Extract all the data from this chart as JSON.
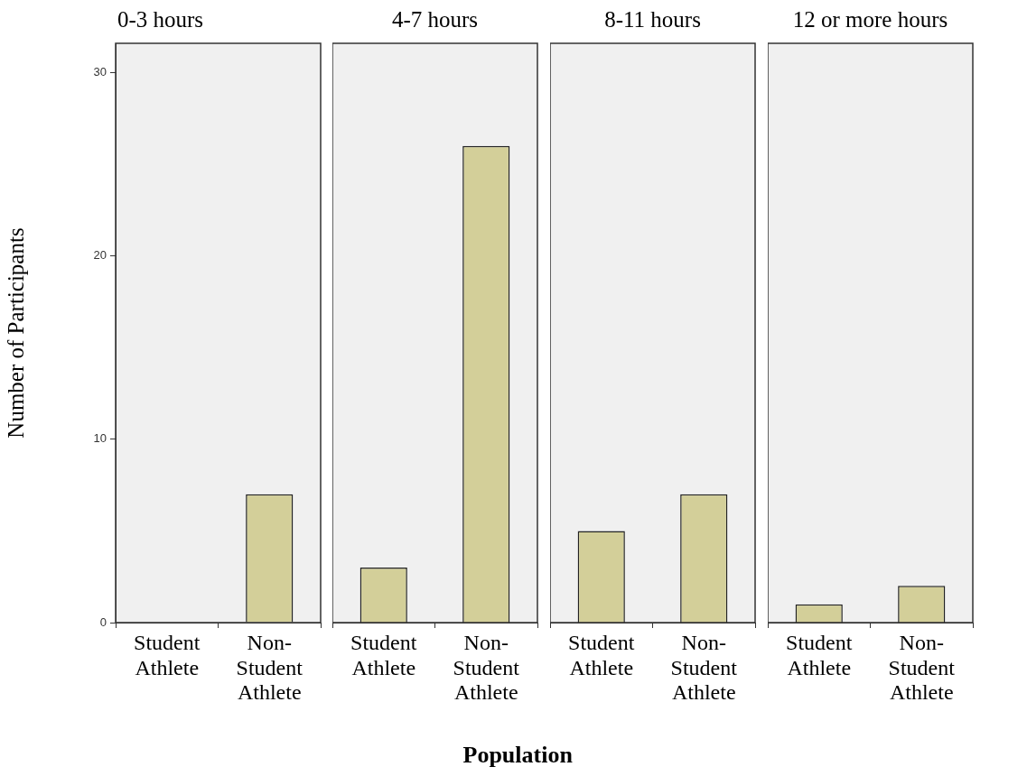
{
  "chart_data": [
    {
      "type": "bar",
      "title": "0-3 hours",
      "categories": [
        "Student Athlete",
        "Non-Student Athlete"
      ],
      "values": [
        0,
        7
      ],
      "color": "#d3cf99",
      "ylim": [
        0,
        31.6
      ],
      "yticks": [
        0,
        10,
        20,
        30
      ],
      "ylabel": "Number of Participants",
      "legend": false
    },
    {
      "type": "bar",
      "title": "4-7 hours",
      "categories": [
        "Student Athlete",
        "Non-Student Athlete"
      ],
      "values": [
        3,
        26
      ],
      "color": "#d3cf99",
      "ylim": [
        0,
        31.6
      ],
      "yticks": [
        0,
        10,
        20,
        30
      ],
      "tick_labels": "x",
      "xlabel": "Population",
      "legend": false
    },
    {
      "type": "bar",
      "title": "8-11 hours",
      "categories": [
        "Student Athlete",
        "Non-Student Athlete"
      ],
      "values": [
        5,
        7
      ],
      "color": "#d3cf99",
      "ylim": [
        0,
        31.6
      ],
      "yticks": [
        0,
        10,
        20,
        30
      ],
      "tick_labels": "x",
      "legend": false
    },
    {
      "type": "bar",
      "title": "12 or more hours",
      "categories": [
        "Student Athlete",
        "Non-Student Athlete"
      ],
      "values": [
        1,
        2
      ],
      "color": "#d3cf99",
      "ylim": [
        0,
        31.6
      ],
      "yticks": [
        0,
        10,
        20,
        30
      ],
      "tick_labels": "x",
      "legend": false
    }
  ]
}
